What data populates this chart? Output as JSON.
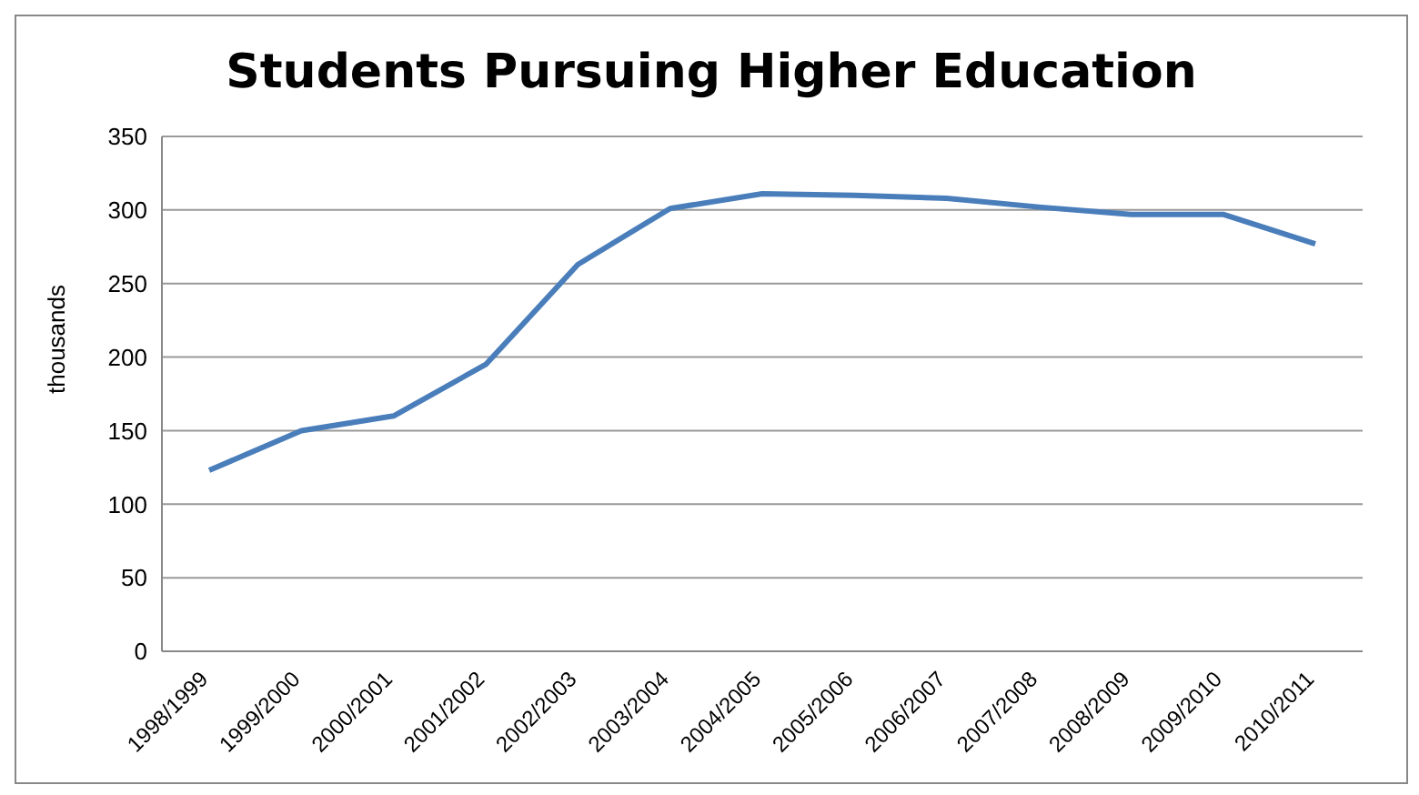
{
  "chart_data": {
    "type": "line",
    "title": "Students Pursuing Higher Education",
    "ylabel": "thousands",
    "categories": [
      "1998/1999",
      "1999/2000",
      "2000/2001",
      "2001/2002",
      "2002/2003",
      "2003/2004",
      "2004/2005",
      "2005/2006",
      "2006/2007",
      "2007/2008",
      "2008/2009",
      "2009/2010",
      "2010/2011"
    ],
    "series": [
      {
        "color": "#4a7ebb",
        "values": [
          123,
          150,
          160,
          195,
          263,
          301,
          311,
          310,
          308,
          302,
          297,
          297,
          277
        ]
      }
    ],
    "ylim": [
      0,
      350
    ],
    "yticks": [
      0,
      50,
      100,
      150,
      200,
      250,
      300,
      350
    ],
    "grid": "y",
    "legend": false,
    "marker": "none",
    "line_style": "solid"
  }
}
